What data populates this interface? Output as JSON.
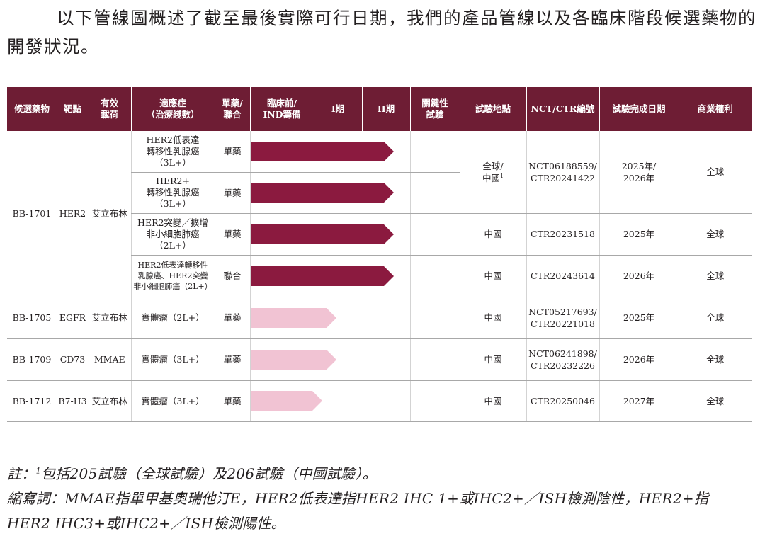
{
  "intro_text": "以下管線圖概述了截至最後實際可行日期，我們的產品管線以及各臨床階段候選藥物的開發狀況。",
  "colors": {
    "header_bg": "#6e1d34",
    "bar_dark": "#8b1a3f",
    "bar_light": "#f1c3d3"
  },
  "table": {
    "headers": {
      "candidate": "候選藥物",
      "target": "靶點",
      "payload": "有效\n載荷",
      "indication": "適應症\n（治療綫數）",
      "mono_combo": "單藥/\n聯合",
      "preclinical": "臨床前/\nIND籌備",
      "phase1": "I期",
      "phase2": "II期",
      "pivotal": "關鍵性\n試驗",
      "location": "試驗地點",
      "nct": "NCT/CTR編號",
      "completion": "試驗完成日期",
      "rights": "商業權利"
    },
    "rows": [
      {
        "candidate": "BB-1701",
        "target": "HER2",
        "payload": "艾立布林",
        "indication": "HER2低表達\n轉移性乳腺癌\n（3L+）",
        "mono_combo": "單藥",
        "stage": "Phase II",
        "progress": 1.0,
        "bar_color": "dark",
        "location": "全球/\n中國",
        "location_note": "1",
        "nct": "NCT06188559/\nCTR20241422",
        "completion": "2025年/\n2026年",
        "rights": "全球"
      },
      {
        "candidate": "BB-1701",
        "target": "HER2",
        "payload": "艾立布林",
        "indication": "HER2+\n轉移性乳腺癌\n（3L+）",
        "mono_combo": "單藥",
        "stage": "Phase II",
        "progress": 1.0,
        "bar_color": "dark",
        "location": "全球/\n中國",
        "location_note": "1",
        "nct": "NCT06188559/\nCTR20241422",
        "completion": "2025年/\n2026年",
        "rights": "全球"
      },
      {
        "candidate": "BB-1701",
        "target": "HER2",
        "payload": "艾立布林",
        "indication": "HER2突變／擴增\n非小細胞肺癌\n（2L+）",
        "mono_combo": "單藥",
        "stage": "Phase II",
        "progress": 1.0,
        "bar_color": "dark",
        "location": "中國",
        "nct": "CTR20231518",
        "completion": "2025年",
        "rights": "全球"
      },
      {
        "candidate": "BB-1701",
        "target": "HER2",
        "payload": "艾立布林",
        "indication": "HER2低表達轉移性\n乳腺癌、HER2突變\n非小細胞肺癌（2L+）",
        "mono_combo": "聯合",
        "stage": "Phase II",
        "progress": 1.0,
        "bar_color": "dark",
        "location": "中國",
        "nct": "CTR20243614",
        "completion": "2026年",
        "rights": "全球"
      },
      {
        "candidate": "BB-1705",
        "target": "EGFR",
        "payload": "艾立布林",
        "indication": "實體瘤（2L+）",
        "mono_combo": "單藥",
        "stage": "Phase I",
        "progress": 0.6,
        "bar_color": "light",
        "location": "中國",
        "nct": "NCT05217693/\nCTR20221018",
        "completion": "2025年",
        "rights": "全球"
      },
      {
        "candidate": "BB-1709",
        "target": "CD73",
        "payload": "MMAE",
        "indication": "實體瘤（3L+）",
        "mono_combo": "單藥",
        "stage": "Phase I",
        "progress": 0.6,
        "bar_color": "light",
        "location": "中國",
        "nct": "NCT06241898/\nCTR20232226",
        "completion": "2026年",
        "rights": "全球"
      },
      {
        "candidate": "BB-1712",
        "target": "B7-H3",
        "payload": "艾立布林",
        "indication": "實體瘤（3L+）",
        "mono_combo": "單藥",
        "stage": "Phase I",
        "progress": 0.5,
        "bar_color": "light",
        "location": "中國",
        "nct": "CTR20250046",
        "completion": "2027年",
        "rights": "全球"
      }
    ]
  },
  "footnote": {
    "note_prefix": "註：",
    "note_marker": "1",
    "note_text": "包括205試驗（全球試驗）及206試驗（中國試驗）。",
    "abbrev_line1": "縮寫詞：MMAE指單甲基奧瑞他汀E，HER2低表達指HER2 IHC 1+或IHC2+／ISH檢測陰性，HER2+指",
    "abbrev_line2": "HER2 IHC3+或IHC2+／ISH檢測陽性。"
  }
}
